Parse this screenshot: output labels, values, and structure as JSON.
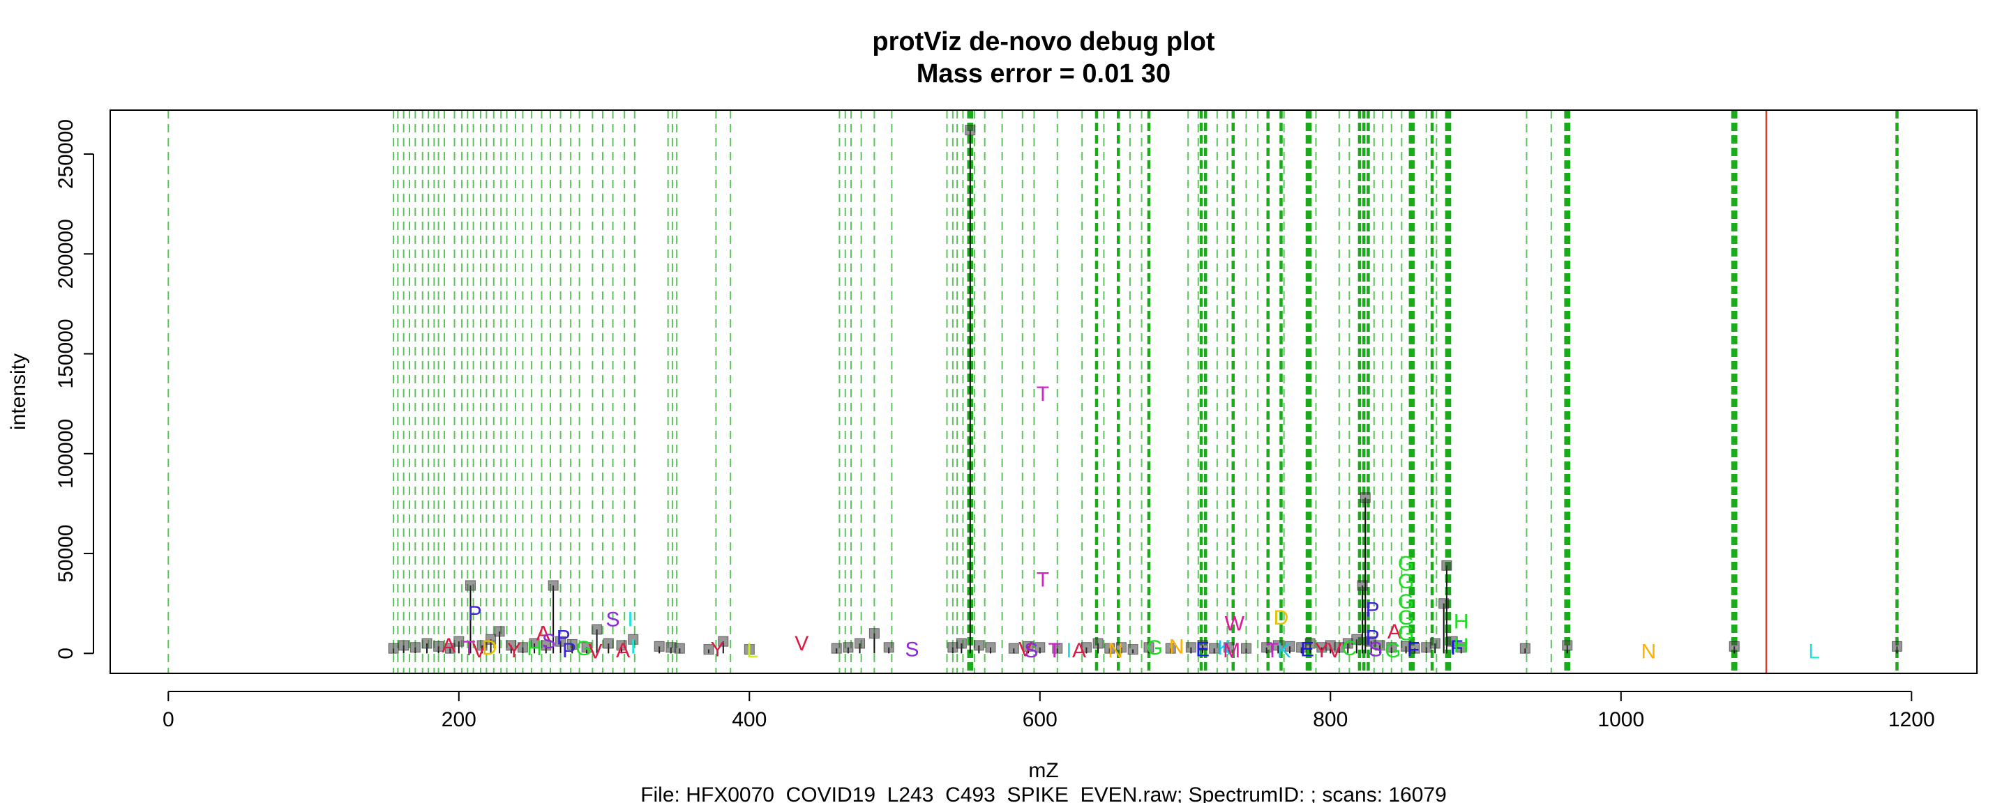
{
  "chart_data": {
    "type": "scatter",
    "title": "protViz de-novo debug plot",
    "subtitle": "Mass error = 0.01 30",
    "xlabel": "mZ",
    "ylabel": "intensity",
    "footer": "File: HFX0070_COVID19_L243_C493_SPIKE_EVEN.raw; SpectrumID: ; scans: 16079",
    "xlim": [
      -40,
      1245
    ],
    "ylim": [
      -10000,
      272000
    ],
    "x_ticks": [
      0,
      200,
      400,
      600,
      800,
      1000,
      1200
    ],
    "y_ticks": [
      0,
      50000,
      100000,
      150000,
      200000,
      250000
    ],
    "x_tick_labels": [
      "0",
      "200",
      "400",
      "600",
      "800",
      "1000",
      "1200"
    ],
    "y_tick_labels": [
      "0",
      "50000",
      "100000",
      "150000",
      "200000",
      "250000"
    ],
    "grid": false,
    "precursor_line": {
      "mz": 1100,
      "color": "#e0403a"
    },
    "dashed_lines": {
      "color": "#1aaa1a",
      "light_mz": [
        0,
        155,
        158,
        162,
        166,
        170,
        175,
        179,
        183,
        186,
        190,
        197,
        202,
        206,
        210,
        215,
        219,
        224,
        229,
        233,
        239,
        244,
        250,
        257,
        263,
        270,
        277,
        283,
        292,
        299,
        306,
        314,
        321,
        344,
        347,
        350,
        377,
        387,
        462,
        466,
        470,
        477,
        486,
        498,
        536,
        540,
        543,
        547,
        555,
        562,
        574,
        588,
        596,
        612,
        629,
        644,
        662,
        670,
        702,
        709,
        722,
        729,
        742,
        750,
        768,
        790,
        806,
        813,
        830,
        836,
        842,
        849,
        866,
        873,
        935,
        952
      ],
      "bold_mz": [
        551,
        553,
        639,
        654,
        675,
        711,
        714,
        733,
        757,
        766,
        784,
        786,
        820,
        823,
        826,
        855,
        857,
        870,
        880,
        882,
        962,
        964,
        1077,
        1079,
        1190
      ]
    },
    "peaks": [
      {
        "x": 155,
        "y": 2500
      },
      {
        "x": 162,
        "y": 4000
      },
      {
        "x": 170,
        "y": 3000
      },
      {
        "x": 178,
        "y": 5000
      },
      {
        "x": 186,
        "y": 3500
      },
      {
        "x": 194,
        "y": 2500
      },
      {
        "x": 200,
        "y": 6000
      },
      {
        "x": 208,
        "y": 34000
      },
      {
        "x": 216,
        "y": 4000
      },
      {
        "x": 222,
        "y": 7000
      },
      {
        "x": 228,
        "y": 11000
      },
      {
        "x": 236,
        "y": 4000
      },
      {
        "x": 244,
        "y": 3000
      },
      {
        "x": 252,
        "y": 5000
      },
      {
        "x": 260,
        "y": 4000
      },
      {
        "x": 265,
        "y": 34000
      },
      {
        "x": 270,
        "y": 6000
      },
      {
        "x": 278,
        "y": 4500
      },
      {
        "x": 288,
        "y": 3000
      },
      {
        "x": 295,
        "y": 12000
      },
      {
        "x": 303,
        "y": 5000
      },
      {
        "x": 312,
        "y": 4000
      },
      {
        "x": 320,
        "y": 7000
      },
      {
        "x": 338,
        "y": 3500
      },
      {
        "x": 346,
        "y": 3000
      },
      {
        "x": 352,
        "y": 2500
      },
      {
        "x": 372,
        "y": 2000
      },
      {
        "x": 382,
        "y": 6000
      },
      {
        "x": 400,
        "y": 2000
      },
      {
        "x": 460,
        "y": 2500
      },
      {
        "x": 468,
        "y": 3000
      },
      {
        "x": 476,
        "y": 5000
      },
      {
        "x": 486,
        "y": 10000
      },
      {
        "x": 496,
        "y": 3000
      },
      {
        "x": 540,
        "y": 3000
      },
      {
        "x": 546,
        "y": 5000
      },
      {
        "x": 552,
        "y": 262000
      },
      {
        "x": 558,
        "y": 4000
      },
      {
        "x": 566,
        "y": 3000
      },
      {
        "x": 582,
        "y": 2500
      },
      {
        "x": 592,
        "y": 3500
      },
      {
        "x": 600,
        "y": 3000
      },
      {
        "x": 612,
        "y": 2500
      },
      {
        "x": 632,
        "y": 3000
      },
      {
        "x": 640,
        "y": 5000
      },
      {
        "x": 648,
        "y": 2500
      },
      {
        "x": 656,
        "y": 3000
      },
      {
        "x": 664,
        "y": 2000
      },
      {
        "x": 675,
        "y": 3000
      },
      {
        "x": 690,
        "y": 2500
      },
      {
        "x": 704,
        "y": 3000
      },
      {
        "x": 712,
        "y": 4000
      },
      {
        "x": 720,
        "y": 2500
      },
      {
        "x": 730,
        "y": 3000
      },
      {
        "x": 742,
        "y": 2500
      },
      {
        "x": 756,
        "y": 3000
      },
      {
        "x": 764,
        "y": 4000
      },
      {
        "x": 772,
        "y": 3500
      },
      {
        "x": 780,
        "y": 3000
      },
      {
        "x": 786,
        "y": 5000
      },
      {
        "x": 794,
        "y": 3000
      },
      {
        "x": 800,
        "y": 4000
      },
      {
        "x": 806,
        "y": 3000
      },
      {
        "x": 812,
        "y": 5000
      },
      {
        "x": 818,
        "y": 7000
      },
      {
        "x": 822,
        "y": 34000
      },
      {
        "x": 824,
        "y": 78000
      },
      {
        "x": 828,
        "y": 6000
      },
      {
        "x": 834,
        "y": 4000
      },
      {
        "x": 842,
        "y": 3000
      },
      {
        "x": 852,
        "y": 3500
      },
      {
        "x": 858,
        "y": 2500
      },
      {
        "x": 866,
        "y": 3000
      },
      {
        "x": 872,
        "y": 5000
      },
      {
        "x": 878,
        "y": 25000
      },
      {
        "x": 880,
        "y": 44000
      },
      {
        "x": 884,
        "y": 6000
      },
      {
        "x": 890,
        "y": 3000
      },
      {
        "x": 934,
        "y": 2500
      },
      {
        "x": 963,
        "y": 4000
      },
      {
        "x": 1078,
        "y": 3500
      },
      {
        "x": 1190,
        "y": 3500
      }
    ],
    "labels": [
      {
        "text": "P",
        "x": 211,
        "y": 20000,
        "color": "#3a22d6"
      },
      {
        "text": "A",
        "x": 193,
        "y": 4000,
        "color": "#e01845"
      },
      {
        "text": "T",
        "x": 207,
        "y": 2500,
        "color": "#cc22cc"
      },
      {
        "text": "V",
        "x": 214,
        "y": 1500,
        "color": "#e01845"
      },
      {
        "text": "D",
        "x": 221,
        "y": 3000,
        "color": "#e8c000"
      },
      {
        "text": "Y",
        "x": 238,
        "y": 1500,
        "color": "#e01845"
      },
      {
        "text": "H",
        "x": 252,
        "y": 2500,
        "color": "#1ddd22"
      },
      {
        "text": "A",
        "x": 258,
        "y": 10000,
        "color": "#e01845"
      },
      {
        "text": "S",
        "x": 262,
        "y": 6000,
        "color": "#8b2ad9"
      },
      {
        "text": "P",
        "x": 272,
        "y": 8000,
        "color": "#3a22d6"
      },
      {
        "text": "P",
        "x": 276,
        "y": 1500,
        "color": "#3a22d6"
      },
      {
        "text": "G",
        "x": 286,
        "y": 2500,
        "color": "#1ddd22"
      },
      {
        "text": "V",
        "x": 294,
        "y": 1000,
        "color": "#e01845"
      },
      {
        "text": "S",
        "x": 306,
        "y": 17000,
        "color": "#8b2ad9"
      },
      {
        "text": "I",
        "x": 318,
        "y": 17000,
        "color": "#18e8d8"
      },
      {
        "text": "A",
        "x": 313,
        "y": 1500,
        "color": "#e01845"
      },
      {
        "text": "I",
        "x": 320,
        "y": 3500,
        "color": "#18e8d8"
      },
      {
        "text": "Y",
        "x": 378,
        "y": 2000,
        "color": "#e01845"
      },
      {
        "text": "L",
        "x": 402,
        "y": 1500,
        "color": "#c8f018"
      },
      {
        "text": "V",
        "x": 436,
        "y": 5000,
        "color": "#e01845"
      },
      {
        "text": "S",
        "x": 512,
        "y": 2000,
        "color": "#8b2ad9"
      },
      {
        "text": "V",
        "x": 590,
        "y": 2000,
        "color": "#e01845"
      },
      {
        "text": "S",
        "x": 594,
        "y": 1500,
        "color": "#8b2ad9"
      },
      {
        "text": "T",
        "x": 602,
        "y": 130000,
        "color": "#cc22cc"
      },
      {
        "text": "T",
        "x": 602,
        "y": 37000,
        "color": "#cc22cc"
      },
      {
        "text": "T",
        "x": 610,
        "y": 1500,
        "color": "#cc22cc"
      },
      {
        "text": "I",
        "x": 620,
        "y": 1500,
        "color": "#18e8d8"
      },
      {
        "text": "A",
        "x": 627,
        "y": 1500,
        "color": "#e01845"
      },
      {
        "text": "N",
        "x": 652,
        "y": 1500,
        "color": "#ffb000"
      },
      {
        "text": "G",
        "x": 679,
        "y": 3000,
        "color": "#1ddd22"
      },
      {
        "text": "N",
        "x": 694,
        "y": 3500,
        "color": "#ffb000"
      },
      {
        "text": "E",
        "x": 712,
        "y": 2000,
        "color": "#1a1ae0"
      },
      {
        "text": "K",
        "x": 727,
        "y": 3000,
        "color": "#18c8e8"
      },
      {
        "text": "M",
        "x": 732,
        "y": 1500,
        "color": "#e01898"
      },
      {
        "text": "W",
        "x": 734,
        "y": 15000,
        "color": "#e01898"
      },
      {
        "text": "T",
        "x": 760,
        "y": 1500,
        "color": "#cc22cc"
      },
      {
        "text": "K",
        "x": 768,
        "y": 1500,
        "color": "#18c8e8"
      },
      {
        "text": "D",
        "x": 766,
        "y": 18000,
        "color": "#e8c000"
      },
      {
        "text": "E",
        "x": 784,
        "y": 2000,
        "color": "#1a1ae0"
      },
      {
        "text": "Y",
        "x": 794,
        "y": 1500,
        "color": "#e01845"
      },
      {
        "text": "V",
        "x": 803,
        "y": 1500,
        "color": "#e01845"
      },
      {
        "text": "C",
        "x": 813,
        "y": 2500,
        "color": "#1ddd22"
      },
      {
        "text": "P",
        "x": 829,
        "y": 22000,
        "color": "#3a22d6"
      },
      {
        "text": "P",
        "x": 829,
        "y": 8000,
        "color": "#3a22d6"
      },
      {
        "text": "S",
        "x": 831,
        "y": 2000,
        "color": "#8b2ad9"
      },
      {
        "text": "G",
        "x": 843,
        "y": 1500,
        "color": "#1ddd22"
      },
      {
        "text": "A",
        "x": 844,
        "y": 11000,
        "color": "#e01845"
      },
      {
        "text": "G",
        "x": 852,
        "y": 45000,
        "color": "#1ddd22"
      },
      {
        "text": "G",
        "x": 852,
        "y": 36000,
        "color": "#1ddd22"
      },
      {
        "text": "G",
        "x": 852,
        "y": 26000,
        "color": "#1ddd22"
      },
      {
        "text": "G",
        "x": 852,
        "y": 18000,
        "color": "#1ddd22"
      },
      {
        "text": "G",
        "x": 852,
        "y": 10000,
        "color": "#1ddd22"
      },
      {
        "text": "F",
        "x": 857,
        "y": 2000,
        "color": "#1a1ae0"
      },
      {
        "text": "F",
        "x": 887,
        "y": 3000,
        "color": "#1a1ae0"
      },
      {
        "text": "H",
        "x": 890,
        "y": 16000,
        "color": "#1ddd22"
      },
      {
        "text": "H",
        "x": 890,
        "y": 4000,
        "color": "#1ddd22"
      },
      {
        "text": "N",
        "x": 1019,
        "y": 1000,
        "color": "#ffb000"
      },
      {
        "text": "L",
        "x": 1133,
        "y": 1000,
        "color": "#18e8d8"
      }
    ]
  }
}
